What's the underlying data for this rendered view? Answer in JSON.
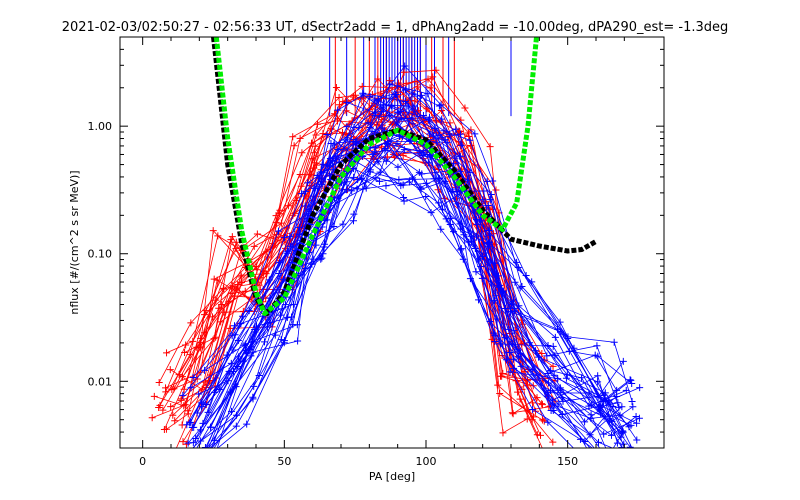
{
  "chart_data": {
    "type": "line",
    "title": "2021-02-03/02:50:27 - 02:56:33 UT, dSectr2add = 1, dPhAng2add = -10.00deg, dPA290_est= -1.3deg",
    "xlabel": "PA [deg]",
    "ylabel": "nflux [#/(cm^2 s sr MeV)]",
    "xlim": [
      -8,
      184
    ],
    "ylim_log": [
      0.003,
      5.0
    ],
    "y_scale": "log",
    "x_ticks": [
      0,
      50,
      100,
      150
    ],
    "x_tick_labels": [
      "0",
      "50",
      "100",
      "150"
    ],
    "y_ticks": [
      0.01,
      0.1,
      1.0
    ],
    "y_tick_labels": [
      "0.01",
      "0.10",
      "1.00"
    ],
    "series": [
      {
        "color": "#ff0000",
        "style": "line-plus",
        "points_summary": [
          {
            "x": 10,
            "y": 0.006
          },
          {
            "x": 20,
            "y": 0.012
          },
          {
            "x": 30,
            "y": 0.05
          },
          {
            "x": 40,
            "y": 0.05
          },
          {
            "x": 50,
            "y": 0.12
          },
          {
            "x": 60,
            "y": 0.35
          },
          {
            "x": 70,
            "y": 0.7
          },
          {
            "x": 80,
            "y": 0.85
          },
          {
            "x": 90,
            "y": 0.95
          },
          {
            "x": 100,
            "y": 0.8
          },
          {
            "x": 110,
            "y": 0.55
          },
          {
            "x": 120,
            "y": 0.2
          },
          {
            "x": 130,
            "y": 0.01
          },
          {
            "x": 140,
            "y": 0.006
          }
        ]
      },
      {
        "color": "#0000ff",
        "style": "line-plus",
        "points_summary": [
          {
            "x": 20,
            "y": 0.004
          },
          {
            "x": 35,
            "y": 0.015
          },
          {
            "x": 50,
            "y": 0.05
          },
          {
            "x": 60,
            "y": 0.18
          },
          {
            "x": 70,
            "y": 0.45
          },
          {
            "x": 80,
            "y": 0.75
          },
          {
            "x": 90,
            "y": 0.9
          },
          {
            "x": 100,
            "y": 0.7
          },
          {
            "x": 110,
            "y": 0.35
          },
          {
            "x": 120,
            "y": 0.12
          },
          {
            "x": 130,
            "y": 0.03
          },
          {
            "x": 145,
            "y": 0.01
          },
          {
            "x": 160,
            "y": 0.006
          },
          {
            "x": 170,
            "y": 0.004
          }
        ]
      },
      {
        "color": "#000000",
        "style": "dashed-thick",
        "points": [
          {
            "x": 25,
            "y": 5.0
          },
          {
            "x": 30,
            "y": 0.5
          },
          {
            "x": 35,
            "y": 0.12
          },
          {
            "x": 40,
            "y": 0.045
          },
          {
            "x": 44,
            "y": 0.034
          },
          {
            "x": 50,
            "y": 0.05
          },
          {
            "x": 60,
            "y": 0.2
          },
          {
            "x": 70,
            "y": 0.5
          },
          {
            "x": 80,
            "y": 0.8
          },
          {
            "x": 90,
            "y": 0.93
          },
          {
            "x": 100,
            "y": 0.78
          },
          {
            "x": 110,
            "y": 0.45
          },
          {
            "x": 120,
            "y": 0.22
          },
          {
            "x": 130,
            "y": 0.13
          },
          {
            "x": 140,
            "y": 0.115
          },
          {
            "x": 150,
            "y": 0.105
          },
          {
            "x": 155,
            "y": 0.108
          },
          {
            "x": 160,
            "y": 0.125
          }
        ]
      },
      {
        "color": "#00ee00",
        "style": "dashed-thick",
        "points": [
          {
            "x": 26,
            "y": 5.0
          },
          {
            "x": 30,
            "y": 0.8
          },
          {
            "x": 35,
            "y": 0.15
          },
          {
            "x": 40,
            "y": 0.05
          },
          {
            "x": 43,
            "y": 0.034
          },
          {
            "x": 50,
            "y": 0.045
          },
          {
            "x": 60,
            "y": 0.14
          },
          {
            "x": 70,
            "y": 0.4
          },
          {
            "x": 80,
            "y": 0.72
          },
          {
            "x": 90,
            "y": 0.93
          },
          {
            "x": 100,
            "y": 0.72
          },
          {
            "x": 110,
            "y": 0.4
          },
          {
            "x": 120,
            "y": 0.2
          },
          {
            "x": 127,
            "y": 0.155
          },
          {
            "x": 132,
            "y": 0.25
          },
          {
            "x": 136,
            "y": 1.0
          },
          {
            "x": 139,
            "y": 5.0
          }
        ]
      }
    ],
    "sector_lines": {
      "red_x": [
        68,
        75,
        80,
        83,
        86,
        88,
        90,
        92,
        95,
        98,
        102,
        106,
        110
      ],
      "blue_x": [
        66,
        72,
        78,
        82,
        84,
        85,
        86,
        87,
        88,
        89,
        90,
        91,
        92,
        93,
        94,
        95,
        96,
        97,
        98,
        100,
        103,
        108,
        130
      ],
      "y_top": 5.0,
      "y_bottom": 1.2
    },
    "grid": false,
    "legend": "none"
  }
}
